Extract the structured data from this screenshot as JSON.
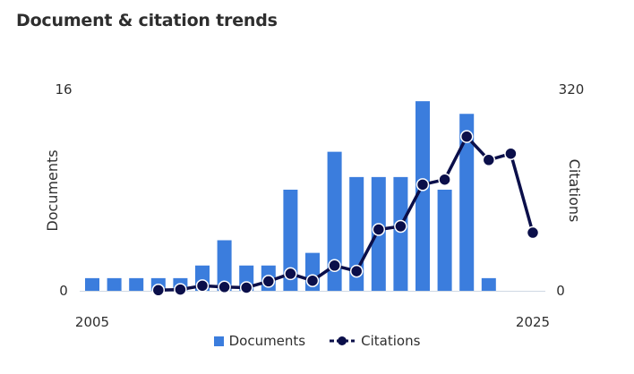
{
  "title": "Document & citation trends",
  "chart_data": {
    "type": "bar",
    "title": "Document & citation trends",
    "x": [
      2005,
      2006,
      2007,
      2008,
      2009,
      2010,
      2011,
      2012,
      2013,
      2014,
      2015,
      2016,
      2017,
      2018,
      2019,
      2020,
      2021,
      2022,
      2023,
      2024,
      2025
    ],
    "xticks": [
      "2005",
      "2025"
    ],
    "ylabel": "Documents",
    "ylabel_right": "Citations",
    "ylim": [
      0,
      16
    ],
    "ylim_right": [
      0,
      320
    ],
    "yticks_left": [
      "0",
      "16"
    ],
    "yticks_right": [
      "0",
      "320"
    ],
    "series": [
      {
        "name": "Documents",
        "type": "bar",
        "axis": "left",
        "color": "#3b7ddd",
        "values": [
          1,
          1,
          1,
          1,
          1,
          2,
          4,
          2,
          2,
          8,
          3,
          11,
          9,
          9,
          9,
          15,
          8,
          14,
          1,
          0,
          0
        ]
      },
      {
        "name": "Citations",
        "type": "line",
        "axis": "right",
        "color": "#0b0f4a",
        "values": [
          null,
          null,
          null,
          1,
          2,
          8,
          6,
          5,
          15,
          27,
          16,
          40,
          31,
          97,
          102,
          168,
          176,
          244,
          207,
          217,
          92
        ]
      }
    ],
    "legend": "bottom",
    "grid": false
  }
}
